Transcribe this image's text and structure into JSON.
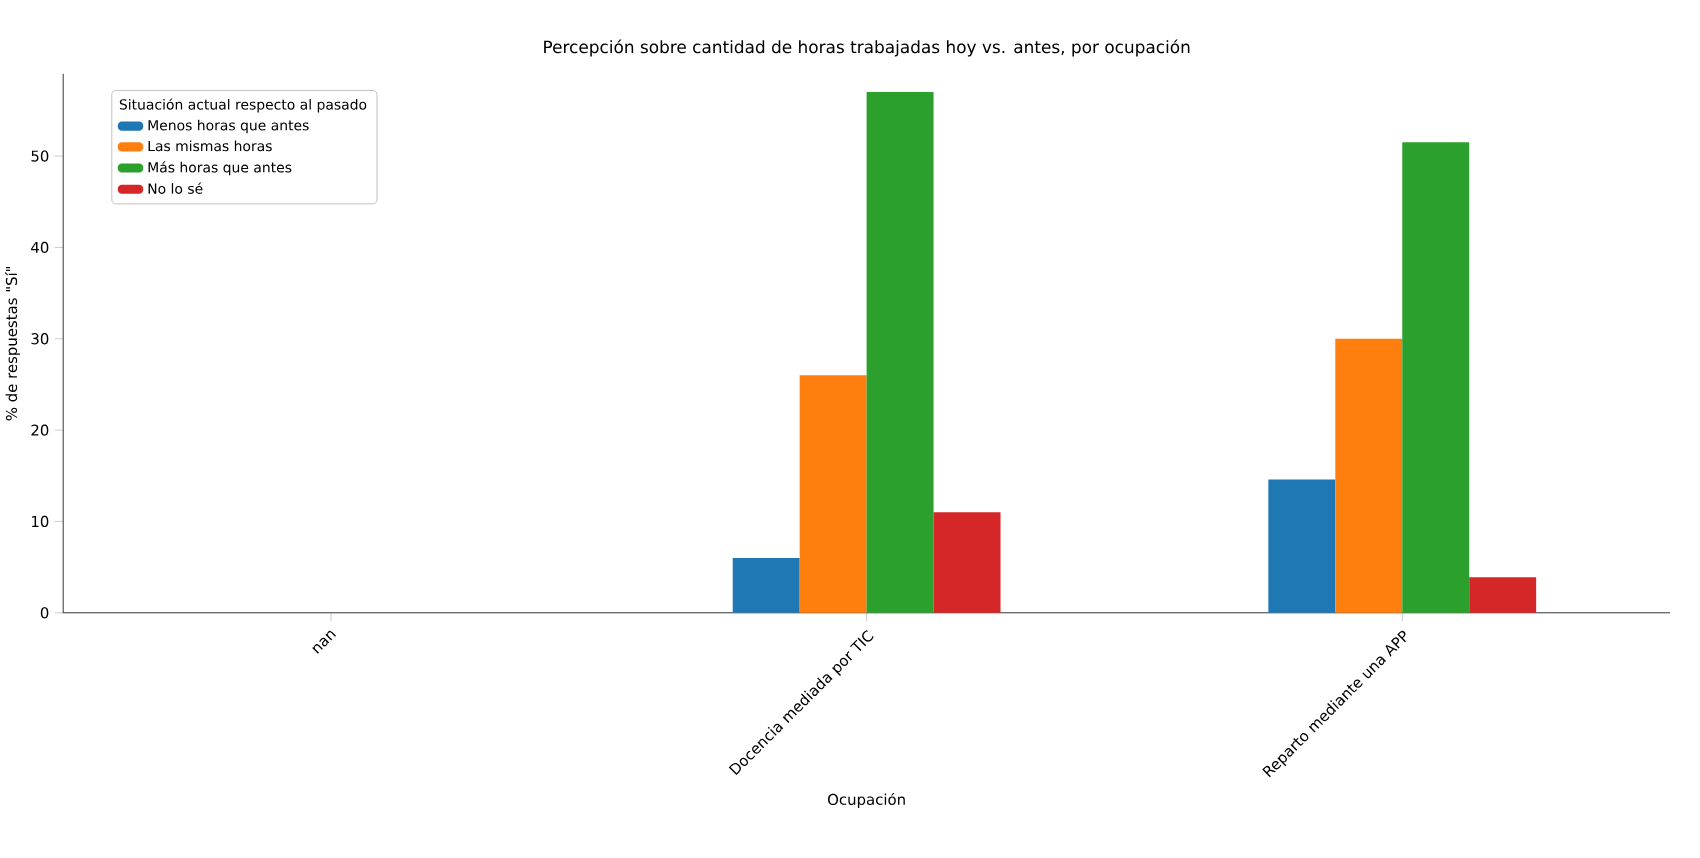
{
  "chart_data": {
    "type": "bar",
    "title": "Percepción sobre cantidad de horas trabajadas hoy vs. antes, por ocupación",
    "xlabel": "Ocupación",
    "ylabel": "% de respuestas \"Sí\"",
    "legend_title": "Situación actual respecto al pasado",
    "categories": [
      "nan",
      "Docencia mediada por TIC",
      "Reparto mediante una APP"
    ],
    "series": [
      {
        "name": "Menos horas que antes",
        "color": "#1f77b4",
        "values": [
          null,
          6,
          14.6
        ]
      },
      {
        "name": "Las mismas horas",
        "color": "#ff7f0e",
        "values": [
          null,
          26,
          30
        ]
      },
      {
        "name": "Más horas que antes",
        "color": "#2ca02c",
        "values": [
          null,
          57,
          51.5
        ]
      },
      {
        "name": "No lo sé",
        "color": "#d62728",
        "values": [
          null,
          11,
          3.9
        ]
      }
    ],
    "ylim": [
      0,
      59
    ],
    "yticks": [
      0,
      10,
      20,
      30,
      40,
      50
    ],
    "legend": "top left",
    "grid": false
  }
}
